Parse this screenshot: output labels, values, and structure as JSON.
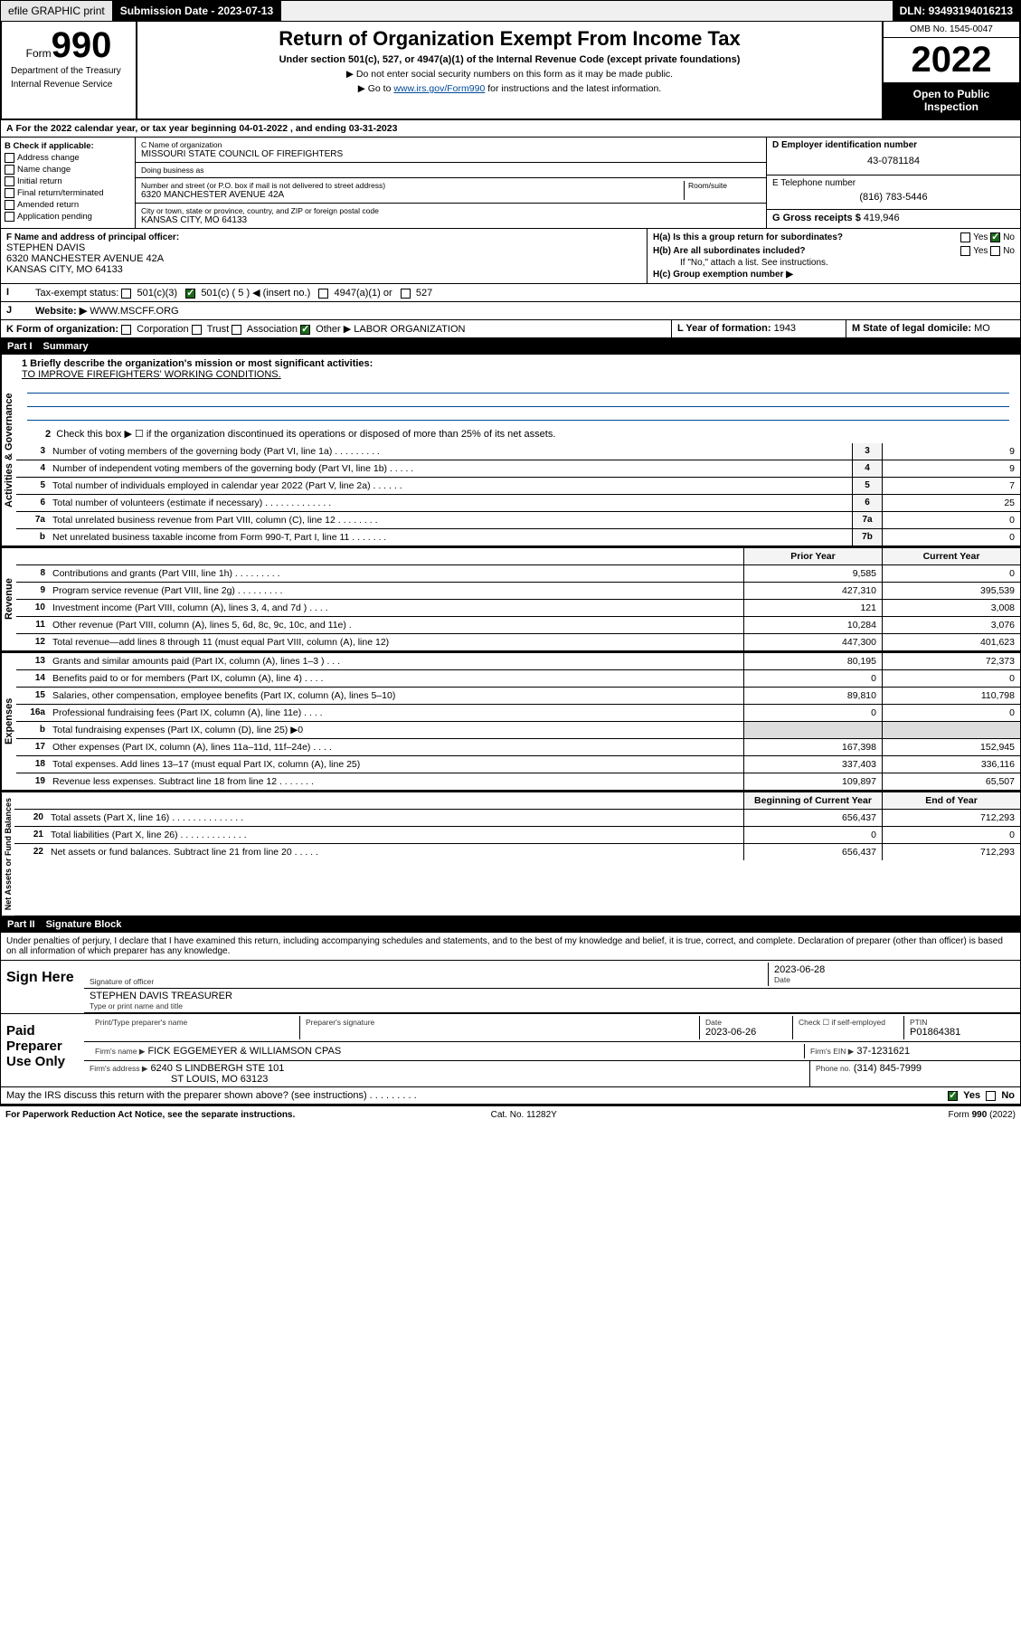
{
  "topbar": {
    "efile": "efile GRAPHIC print",
    "submission_label": "Submission Date - ",
    "submission_date": "2023-07-13",
    "dln_label": "DLN: ",
    "dln": "93493194016213"
  },
  "header": {
    "form_word": "Form",
    "form_num": "990",
    "dept": "Department of the Treasury",
    "irs": "Internal Revenue Service",
    "title": "Return of Organization Exempt From Income Tax",
    "subtitle": "Under section 501(c), 527, or 4947(a)(1) of the Internal Revenue Code (except private foundations)",
    "note1": "▶ Do not enter social security numbers on this form as it may be made public.",
    "note2_pre": "▶ Go to ",
    "note2_link": "www.irs.gov/Form990",
    "note2_post": " for instructions and the latest information.",
    "omb": "OMB No. 1545-0047",
    "year": "2022",
    "open": "Open to Public Inspection"
  },
  "line_a": "For the 2022 calendar year, or tax year beginning 04-01-2022   , and ending 03-31-2023",
  "box_b": {
    "label": "B Check if applicable:",
    "items": [
      "Address change",
      "Name change",
      "Initial return",
      "Final return/terminated",
      "Amended return",
      "Application pending"
    ]
  },
  "box_c": {
    "name_lbl": "C Name of organization",
    "name": "MISSOURI STATE COUNCIL OF FIREFIGHTERS",
    "dba_lbl": "Doing business as",
    "dba": "",
    "addr_lbl": "Number and street (or P.O. box if mail is not delivered to street address)",
    "room_lbl": "Room/suite",
    "addr": "6320 MANCHESTER AVENUE 42A",
    "city_lbl": "City or town, state or province, country, and ZIP or foreign postal code",
    "city": "KANSAS CITY, MO  64133"
  },
  "box_d": {
    "lbl": "D Employer identification number",
    "val": "43-0781184"
  },
  "box_e": {
    "lbl": "E Telephone number",
    "val": "(816) 783-5446"
  },
  "box_g": {
    "lbl": "G Gross receipts $",
    "val": "419,946"
  },
  "box_f": {
    "lbl": "F Name and address of principal officer:",
    "name": "STEPHEN DAVIS",
    "addr1": "6320 MANCHESTER AVENUE 42A",
    "addr2": "KANSAS CITY, MO  64133"
  },
  "box_h": {
    "a_lbl": "H(a)  Is this a group return for subordinates?",
    "a_yes": "Yes",
    "a_no": "No",
    "b_lbl": "H(b)  Are all subordinates included?",
    "b_yes": "Yes",
    "b_no": "No",
    "b_note": "If \"No,\" attach a list. See instructions.",
    "c_lbl": "H(c)  Group exemption number ▶"
  },
  "row_i": {
    "lbl": "Tax-exempt status:",
    "c3": "501(c)(3)",
    "c5_pre": "501(c) ( 5 ) ◀ (insert no.)",
    "c4947": "4947(a)(1) or",
    "c527": "527"
  },
  "row_j": {
    "lbl": "Website: ▶",
    "val": "WWW.MSCFF.ORG"
  },
  "row_k": {
    "lbl": "K Form of organization:",
    "corp": "Corporation",
    "trust": "Trust",
    "assoc": "Association",
    "other": "Other ▶",
    "other_val": "LABOR ORGANIZATION"
  },
  "row_l": {
    "lbl": "L Year of formation:",
    "val": "1943"
  },
  "row_m": {
    "lbl": "M State of legal domicile:",
    "val": "MO"
  },
  "part1": {
    "num": "Part I",
    "title": "Summary"
  },
  "summary": {
    "line1_lbl": "1  Briefly describe the organization's mission or most significant activities:",
    "line1_val": "TO IMPROVE FIREFIGHTERS' WORKING CONDITIONS.",
    "line2": "Check this box ▶ ☐  if the organization discontinued its operations or disposed of more than 25% of its net assets.",
    "sections": {
      "gov": "Activities & Governance",
      "rev": "Revenue",
      "exp": "Expenses",
      "net": "Net Assets or Fund Balances"
    },
    "col_prior": "Prior Year",
    "col_curr": "Current Year",
    "col_beg": "Beginning of Current Year",
    "col_end": "End of Year",
    "rows_gov": [
      {
        "n": "3",
        "d": "Number of voting members of the governing body (Part VI, line 1a)  .    .    .    .    .    .    .    .    .",
        "c": "3",
        "v": "9"
      },
      {
        "n": "4",
        "d": "Number of independent voting members of the governing body (Part VI, line 1b)  .    .    .    .    .",
        "c": "4",
        "v": "9"
      },
      {
        "n": "5",
        "d": "Total number of individuals employed in calendar year 2022 (Part V, line 2a)  .    .    .    .    .    .",
        "c": "5",
        "v": "7"
      },
      {
        "n": "6",
        "d": "Total number of volunteers (estimate if necessary)  .    .    .    .    .    .    .    .    .    .    .    .    .",
        "c": "6",
        "v": "25"
      },
      {
        "n": "7a",
        "d": "Total unrelated business revenue from Part VIII, column (C), line 12  .    .    .    .    .    .    .    .",
        "c": "7a",
        "v": "0"
      },
      {
        "n": "b",
        "d": "Net unrelated business taxable income from Form 990-T, Part I, line 11  .    .    .    .    .    .    .",
        "c": "7b",
        "v": "0"
      }
    ],
    "rows_rev": [
      {
        "n": "8",
        "d": "Contributions and grants (Part VIII, line 1h)  .    .    .    .    .    .    .    .    .",
        "p": "9,585",
        "c": "0"
      },
      {
        "n": "9",
        "d": "Program service revenue (Part VIII, line 2g)  .    .    .    .    .    .    .    .    .",
        "p": "427,310",
        "c": "395,539"
      },
      {
        "n": "10",
        "d": "Investment income (Part VIII, column (A), lines 3, 4, and 7d )  .    .    .    .",
        "p": "121",
        "c": "3,008"
      },
      {
        "n": "11",
        "d": "Other revenue (Part VIII, column (A), lines 5, 6d, 8c, 9c, 10c, and 11e)  .",
        "p": "10,284",
        "c": "3,076"
      },
      {
        "n": "12",
        "d": "Total revenue—add lines 8 through 11 (must equal Part VIII, column (A), line 12)",
        "p": "447,300",
        "c": "401,623"
      }
    ],
    "rows_exp": [
      {
        "n": "13",
        "d": "Grants and similar amounts paid (Part IX, column (A), lines 1–3 )  .    .    .",
        "p": "80,195",
        "c": "72,373"
      },
      {
        "n": "14",
        "d": "Benefits paid to or for members (Part IX, column (A), line 4)  .    .    .    .",
        "p": "0",
        "c": "0"
      },
      {
        "n": "15",
        "d": "Salaries, other compensation, employee benefits (Part IX, column (A), lines 5–10)",
        "p": "89,810",
        "c": "110,798"
      },
      {
        "n": "16a",
        "d": "Professional fundraising fees (Part IX, column (A), line 11e)  .    .    .    .",
        "p": "0",
        "c": "0"
      },
      {
        "n": "b",
        "d": "Total fundraising expenses (Part IX, column (D), line 25) ▶0",
        "p": "",
        "c": ""
      },
      {
        "n": "17",
        "d": "Other expenses (Part IX, column (A), lines 11a–11d, 11f–24e)  .    .    .    .",
        "p": "167,398",
        "c": "152,945"
      },
      {
        "n": "18",
        "d": "Total expenses. Add lines 13–17 (must equal Part IX, column (A), line 25)",
        "p": "337,403",
        "c": "336,116"
      },
      {
        "n": "19",
        "d": "Revenue less expenses. Subtract line 18 from line 12  .    .    .    .    .    .    .",
        "p": "109,897",
        "c": "65,507"
      }
    ],
    "rows_net": [
      {
        "n": "20",
        "d": "Total assets (Part X, line 16)  .    .    .    .    .    .    .    .    .    .    .    .    .    .",
        "p": "656,437",
        "c": "712,293"
      },
      {
        "n": "21",
        "d": "Total liabilities (Part X, line 26)  .    .    .    .    .    .    .    .    .    .    .    .    .",
        "p": "0",
        "c": "0"
      },
      {
        "n": "22",
        "d": "Net assets or fund balances. Subtract line 21 from line 20  .    .    .    .    .",
        "p": "656,437",
        "c": "712,293"
      }
    ]
  },
  "part2": {
    "num": "Part II",
    "title": "Signature Block"
  },
  "penalties": "Under penalties of perjury, I declare that I have examined this return, including accompanying schedules and statements, and to the best of my knowledge and belief, it is true, correct, and complete. Declaration of preparer (other than officer) is based on all information of which preparer has any knowledge.",
  "sign": {
    "here": "Sign Here",
    "sig_lbl": "Signature of officer",
    "date_lbl": "Date",
    "date": "2023-06-28",
    "name": "STEPHEN DAVIS TREASURER",
    "name_lbl": "Type or print name and title"
  },
  "paid": {
    "title": "Paid Preparer Use Only",
    "prep_name_lbl": "Print/Type preparer's name",
    "prep_sig_lbl": "Preparer's signature",
    "prep_date_lbl": "Date",
    "prep_date": "2023-06-26",
    "check_lbl": "Check ☐ if self-employed",
    "ptin_lbl": "PTIN",
    "ptin": "P01864381",
    "firm_name_lbl": "Firm's name    ▶",
    "firm_name": "FICK EGGEMEYER & WILLIAMSON CPAS",
    "firm_ein_lbl": "Firm's EIN ▶",
    "firm_ein": "37-1231621",
    "firm_addr_lbl": "Firm's address ▶",
    "firm_addr1": "6240 S LINDBERGH STE 101",
    "firm_addr2": "ST LOUIS, MO  63123",
    "phone_lbl": "Phone no.",
    "phone": "(314) 845-7999"
  },
  "discuss": {
    "q": "May the IRS discuss this return with the preparer shown above? (see instructions)   .    .    .    .    .    .    .    .    .",
    "yes": "Yes",
    "no": "No"
  },
  "footer": {
    "left": "For Paperwork Reduction Act Notice, see the separate instructions.",
    "mid": "Cat. No. 11282Y",
    "right": "Form 990 (2022)"
  }
}
